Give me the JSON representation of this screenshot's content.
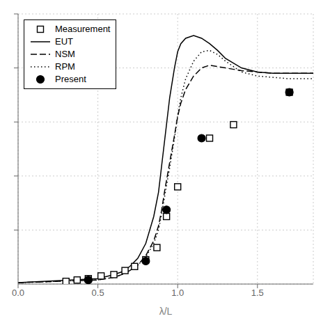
{
  "chart_data": {
    "type": "line",
    "title": "",
    "xlabel": "λ/L",
    "ylabel": "",
    "xlim": [
      0,
      1.85
    ],
    "ylim": [
      0,
      2.0
    ],
    "xticks": [
      {
        "value": 0,
        "label": "0.0"
      },
      0.5,
      {
        "value": 1.0,
        "label": "1.0"
      },
      1.5
    ],
    "yticks": [
      0.4,
      0.8,
      1.2,
      1.6,
      2.0
    ],
    "tick_labels": "x",
    "grid": true,
    "legend": "upper left",
    "series": [
      {
        "name": "Measurement",
        "type": "scatter",
        "marker": "open_square",
        "color": "#000000",
        "x": [
          0.3,
          0.37,
          0.44,
          0.52,
          0.6,
          0.67,
          0.73,
          0.8,
          0.87,
          0.93,
          1.0,
          1.2,
          1.35,
          1.7
        ],
        "values": [
          0.02,
          0.03,
          0.04,
          0.06,
          0.07,
          0.1,
          0.13,
          0.18,
          0.27,
          0.5,
          0.72,
          1.08,
          1.18,
          1.42
        ]
      },
      {
        "name": "EUT",
        "type": "line",
        "line_style": "solid",
        "color": "#000000",
        "x": [
          0.0,
          0.5,
          0.6,
          0.65,
          0.7,
          0.75,
          0.8,
          0.85,
          0.88,
          0.9,
          0.92,
          0.95,
          0.98,
          1.0,
          1.02,
          1.05,
          1.1,
          1.15,
          1.2,
          1.25,
          1.3,
          1.4,
          1.5,
          1.6,
          1.7,
          1.8,
          1.85
        ],
        "values": [
          0.01,
          0.04,
          0.07,
          0.09,
          0.13,
          0.19,
          0.3,
          0.5,
          0.68,
          0.88,
          1.08,
          1.38,
          1.6,
          1.72,
          1.78,
          1.82,
          1.84,
          1.82,
          1.78,
          1.73,
          1.67,
          1.6,
          1.57,
          1.56,
          1.56,
          1.56,
          1.56
        ]
      },
      {
        "name": "NSM",
        "type": "line",
        "line_style": "dashed",
        "color": "#000000",
        "x": [
          0.0,
          0.5,
          0.6,
          0.65,
          0.7,
          0.75,
          0.8,
          0.85,
          0.88,
          0.9,
          0.92,
          0.95,
          0.98,
          1.0,
          1.02,
          1.05,
          1.1,
          1.15,
          1.2,
          1.3,
          1.4,
          1.5,
          1.6,
          1.7,
          1.8,
          1.85
        ],
        "values": [
          0.01,
          0.03,
          0.05,
          0.07,
          0.1,
          0.14,
          0.21,
          0.32,
          0.43,
          0.55,
          0.7,
          0.9,
          1.1,
          1.24,
          1.34,
          1.44,
          1.54,
          1.6,
          1.62,
          1.6,
          1.58,
          1.57,
          1.56,
          1.56,
          1.56,
          1.56
        ]
      },
      {
        "name": "RPM",
        "type": "line",
        "line_style": "dotted",
        "color": "#000000",
        "x": [
          0.0,
          0.5,
          0.6,
          0.65,
          0.7,
          0.75,
          0.8,
          0.85,
          0.88,
          0.9,
          0.92,
          0.95,
          0.98,
          1.0,
          1.02,
          1.05,
          1.1,
          1.15,
          1.2,
          1.25,
          1.3,
          1.4,
          1.5,
          1.6,
          1.7,
          1.8,
          1.85
        ],
        "values": [
          0.01,
          0.03,
          0.05,
          0.07,
          0.1,
          0.14,
          0.2,
          0.3,
          0.4,
          0.52,
          0.66,
          0.86,
          1.08,
          1.25,
          1.38,
          1.52,
          1.65,
          1.72,
          1.73,
          1.7,
          1.65,
          1.57,
          1.54,
          1.53,
          1.52,
          1.52,
          1.52
        ]
      },
      {
        "name": "Present",
        "type": "scatter",
        "marker": "circle",
        "color": "#000000",
        "x": [
          0.44,
          0.8,
          0.93,
          1.15,
          1.7
        ],
        "values": [
          0.03,
          0.17,
          0.55,
          1.08,
          1.42
        ]
      }
    ]
  }
}
